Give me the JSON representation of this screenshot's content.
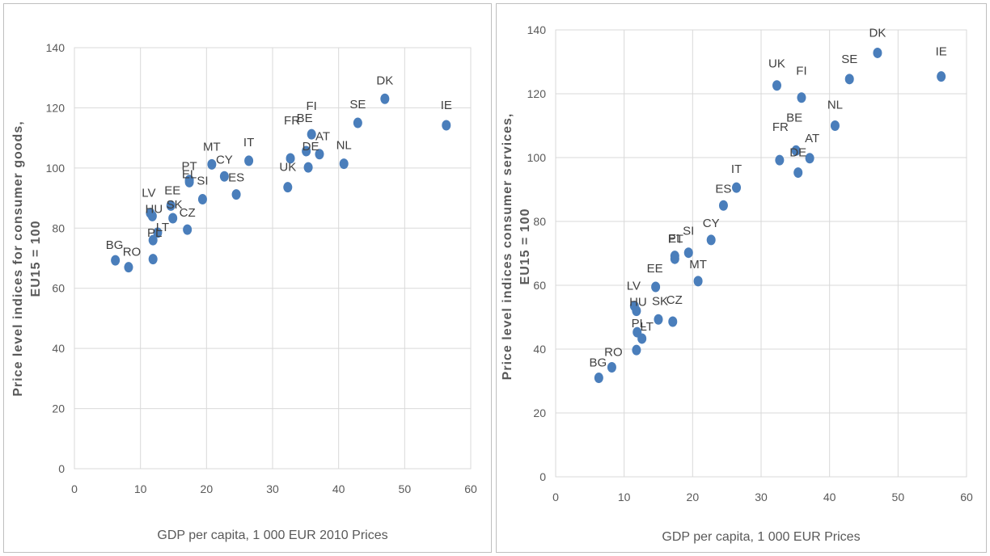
{
  "chart_data": [
    {
      "type": "scatter",
      "xlabel": "GDP per capita, 1 000 EUR 2010 Prices",
      "ylabel_lines": [
        "Price level indices for consumer goods,",
        "EU15 = 100"
      ],
      "xlim": [
        0,
        60
      ],
      "ylim": [
        0,
        140
      ],
      "xticks": [
        "0",
        "10",
        "20",
        "30",
        "40",
        "50",
        "60"
      ],
      "yticks": [
        "0",
        "20",
        "40",
        "60",
        "80",
        "100",
        "120",
        "140"
      ],
      "grid": true,
      "marker_color": "#4a7ebb",
      "points": [
        {
          "label": "BG",
          "x": 6.2,
          "y": 69.3
        },
        {
          "label": "RO",
          "x": 8.2,
          "y": 67.0
        },
        {
          "label": "LV",
          "x": 11.5,
          "y": 85.0
        },
        {
          "label": "HU",
          "x": 11.8,
          "y": 84.0
        },
        {
          "label": "LT",
          "x": 12.6,
          "y": 78.5
        },
        {
          "label": "PL",
          "x": 11.9,
          "y": 76.0
        },
        {
          "label": "",
          "x": 11.9,
          "y": 69.7
        },
        {
          "label": "EE",
          "x": 14.6,
          "y": 87.5
        },
        {
          "label": "SK",
          "x": 14.9,
          "y": 83.3
        },
        {
          "label": "CZ",
          "x": 17.1,
          "y": 79.5
        },
        {
          "label": "PT",
          "x": 17.4,
          "y": 96.0
        },
        {
          "label": "EL",
          "x": 17.4,
          "y": 95.3
        },
        {
          "label": "SI",
          "x": 19.4,
          "y": 89.6
        },
        {
          "label": "MT",
          "x": 20.8,
          "y": 101.2
        },
        {
          "label": "CY",
          "x": 22.7,
          "y": 97.2
        },
        {
          "label": "ES",
          "x": 24.5,
          "y": 91.2
        },
        {
          "label": "IT",
          "x": 26.4,
          "y": 102.4
        },
        {
          "label": "UK",
          "x": 32.3,
          "y": 93.6
        },
        {
          "label": "FR",
          "x": 32.7,
          "y": 103.2
        },
        {
          "label": "BE",
          "x": 35.1,
          "y": 105.6
        },
        {
          "label": "DE",
          "x": 35.4,
          "y": 100.2
        },
        {
          "label": "FI",
          "x": 35.9,
          "y": 111.2
        },
        {
          "label": "AT",
          "x": 37.1,
          "y": 104.6
        },
        {
          "label": "NL",
          "x": 40.8,
          "y": 101.4
        },
        {
          "label": "SE",
          "x": 42.9,
          "y": 115.0
        },
        {
          "label": "DK",
          "x": 47.0,
          "y": 123.0
        },
        {
          "label": "IE",
          "x": 56.3,
          "y": 114.2
        }
      ]
    },
    {
      "type": "scatter",
      "xlabel": "GDP per capita, 1 000 EUR Prices",
      "ylabel_lines": [
        "Price level indices consumer services,",
        "EU15 = 100"
      ],
      "xlim": [
        0,
        60
      ],
      "ylim": [
        0,
        140
      ],
      "xticks": [
        "0",
        "10",
        "20",
        "30",
        "40",
        "50",
        "60"
      ],
      "yticks": [
        "0",
        "20",
        "40",
        "60",
        "80",
        "100",
        "120",
        "140"
      ],
      "grid": true,
      "marker_color": "#4a7ebb",
      "points": [
        {
          "label": "BG",
          "x": 6.3,
          "y": 31.0
        },
        {
          "label": "RO",
          "x": 8.2,
          "y": 34.3
        },
        {
          "label": "LV",
          "x": 11.5,
          "y": 53.5
        },
        {
          "label": "HU",
          "x": 11.8,
          "y": 52.0
        },
        {
          "label": "LT",
          "x": 12.6,
          "y": 43.3
        },
        {
          "label": "PL",
          "x": 11.9,
          "y": 45.3
        },
        {
          "label": "",
          "x": 11.8,
          "y": 39.7
        },
        {
          "label": "EE",
          "x": 14.6,
          "y": 59.5
        },
        {
          "label": "SK",
          "x": 15.0,
          "y": 49.3
        },
        {
          "label": "CZ",
          "x": 17.1,
          "y": 48.6
        },
        {
          "label": "EL",
          "x": 17.4,
          "y": 68.3
        },
        {
          "label": "PT",
          "x": 17.4,
          "y": 69.2
        },
        {
          "label": "SI",
          "x": 19.4,
          "y": 70.2
        },
        {
          "label": "MT",
          "x": 20.8,
          "y": 61.3
        },
        {
          "label": "CY",
          "x": 22.7,
          "y": 74.2
        },
        {
          "label": "ES",
          "x": 24.5,
          "y": 85.0
        },
        {
          "label": "IT",
          "x": 26.4,
          "y": 90.6
        },
        {
          "label": "UK",
          "x": 32.3,
          "y": 122.6
        },
        {
          "label": "FR",
          "x": 32.7,
          "y": 99.2
        },
        {
          "label": "BE",
          "x": 35.1,
          "y": 102.2
        },
        {
          "label": "DE",
          "x": 35.4,
          "y": 95.3
        },
        {
          "label": "FI",
          "x": 35.9,
          "y": 118.8
        },
        {
          "label": "AT",
          "x": 37.1,
          "y": 99.8
        },
        {
          "label": "NL",
          "x": 40.8,
          "y": 110.0
        },
        {
          "label": "SE",
          "x": 42.9,
          "y": 124.6
        },
        {
          "label": "DK",
          "x": 47.0,
          "y": 132.8
        },
        {
          "label": "IE",
          "x": 56.3,
          "y": 125.4
        }
      ]
    }
  ]
}
